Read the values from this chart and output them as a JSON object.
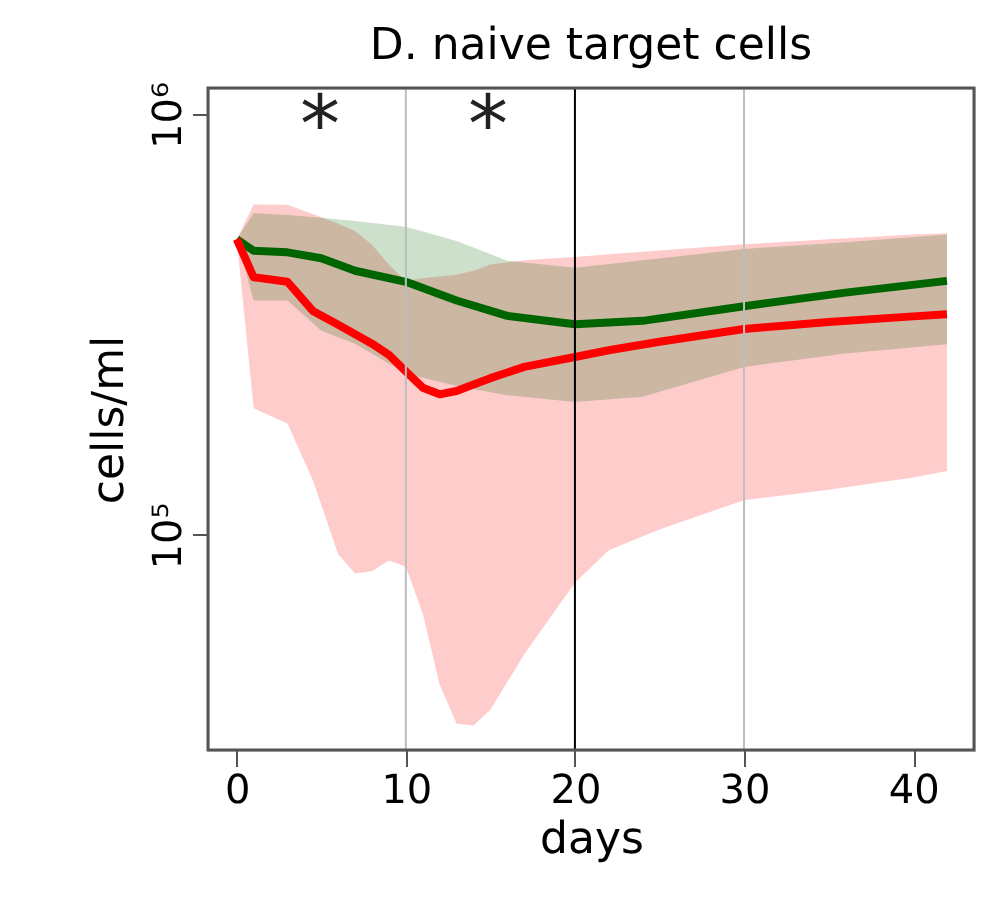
{
  "chart_data": {
    "type": "line",
    "title": "D. naive target cells",
    "xlabel": "days",
    "ylabel": "cells/ml",
    "log": "y",
    "grid": false,
    "legend": false,
    "line_style": "solid",
    "marker": "none",
    "xlim": [
      -1.7,
      43.6
    ],
    "xticks": [
      0,
      10,
      20,
      30,
      40
    ],
    "ylim": [
      30800,
      1156000
    ],
    "yticks": [
      {
        "value": 100000,
        "label": "10⁵"
      },
      {
        "value": 1000000,
        "label": "10⁶"
      }
    ],
    "ref_lines": [
      {
        "axis": "x",
        "value": 10,
        "color": "#bebebe"
      },
      {
        "axis": "x",
        "value": 20,
        "color": "#000000"
      },
      {
        "axis": "x",
        "value": 30,
        "color": "#bebebe"
      }
    ],
    "annotations": [
      "*",
      "*"
    ],
    "series": [
      {
        "color": "#ff0000",
        "x": [
          0,
          1,
          3,
          4.5,
          6,
          7,
          8,
          9,
          10,
          11,
          12,
          13,
          14,
          15,
          17,
          20,
          22,
          25,
          30,
          35,
          40,
          42
        ],
        "values": [
          505000,
          410000,
          400000,
          341000,
          316000,
          300000,
          285000,
          268000,
          245000,
          224000,
          216000,
          220000,
          228000,
          236000,
          251000,
          265000,
          275000,
          288000,
          309000,
          321000,
          331000,
          335000
        ],
        "upper": [
          505000,
          611000,
          610000,
          580000,
          550000,
          528000,
          490000,
          439000,
          402000,
          408000,
          412000,
          416000,
          425000,
          440000,
          450000,
          458000,
          465000,
          475000,
          491000,
          505000,
          518000,
          522000
        ],
        "lower": [
          505000,
          200000,
          184000,
          135000,
          90000,
          81000,
          82000,
          87000,
          84000,
          65000,
          44000,
          35600,
          35200,
          38400,
          52000,
          77000,
          92000,
          103000,
          121000,
          128000,
          137000,
          142000
        ]
      },
      {
        "color": "#006400",
        "x": [
          0,
          1,
          3,
          5,
          7,
          10,
          13,
          16,
          20,
          24,
          30,
          36,
          42
        ],
        "values": [
          505000,
          474000,
          470000,
          455000,
          425000,
          400000,
          361000,
          332000,
          317000,
          323000,
          350000,
          377000,
          402000
        ],
        "upper": [
          505000,
          583000,
          577000,
          568000,
          558000,
          541000,
          500000,
          449000,
          432000,
          450000,
          479000,
          497000,
          518000
        ],
        "lower": [
          505000,
          361000,
          361000,
          306000,
          285000,
          242000,
          226000,
          215000,
          207000,
          213000,
          251000,
          270000,
          284000
        ]
      }
    ]
  }
}
